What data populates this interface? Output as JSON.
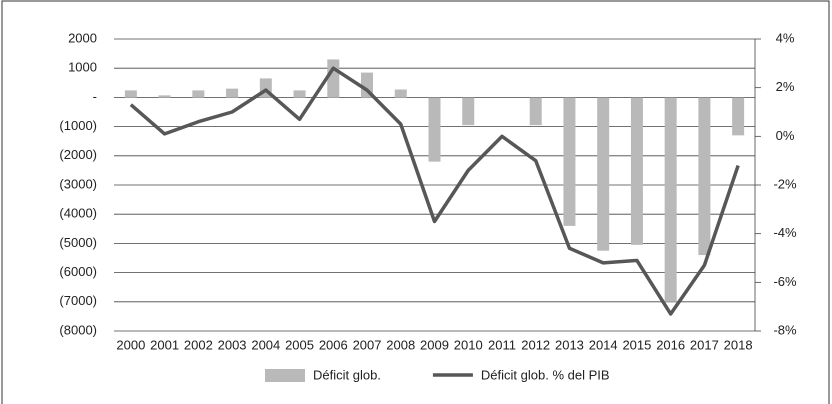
{
  "chart_data": {
    "type": "bar-line",
    "categories": [
      "2000",
      "2001",
      "2002",
      "2003",
      "2004",
      "2005",
      "2006",
      "2007",
      "2008",
      "2009",
      "2010",
      "2011",
      "2012",
      "2013",
      "2014",
      "2015",
      "2016",
      "2017",
      "2018"
    ],
    "series": [
      {
        "name": "Déficit glob.",
        "type": "bar",
        "color": "#b9b9b9",
        "values": [
          240,
          70,
          240,
          300,
          650,
          240,
          1300,
          850,
          270,
          -2200,
          -950,
          0,
          -950,
          -4400,
          -5250,
          -5050,
          -7000,
          -5400,
          -1300
        ]
      },
      {
        "name": "Déficit glob. % del PIB",
        "type": "line",
        "axis": "y2",
        "color": "#575757",
        "values": [
          1.3,
          0.1,
          0.6,
          1.0,
          1.9,
          0.7,
          2.8,
          1.9,
          0.5,
          -3.5,
          -1.4,
          0,
          -1.0,
          -4.6,
          -5.2,
          -5.1,
          -7.3,
          -5.3,
          -1.2
        ]
      }
    ],
    "ylim": [
      -8000,
      2000
    ],
    "yticks": [
      2000,
      1000,
      {
        "value": 0,
        "label": "-"
      },
      {
        "value": -1000,
        "label": "(1000)"
      },
      {
        "value": -2000,
        "label": "(2000)"
      },
      {
        "value": -3000,
        "label": "(3000)"
      },
      {
        "value": -4000,
        "label": "(4000)"
      },
      {
        "value": -5000,
        "label": "(5000)"
      },
      {
        "value": -6000,
        "label": "(6000)"
      },
      {
        "value": -7000,
        "label": "(7000)"
      },
      {
        "value": -8000,
        "label": "(8000)"
      }
    ],
    "y2lim": [
      -8,
      4
    ],
    "y2ticks": [
      {
        "value": 4,
        "label": "4%"
      },
      {
        "value": 2,
        "label": "2%"
      },
      {
        "value": 0,
        "label": "0%"
      },
      {
        "value": -2,
        "label": "-2%"
      },
      {
        "value": -4,
        "label": "-4%"
      },
      {
        "value": -6,
        "label": "-6%"
      },
      {
        "value": -8,
        "label": "-8%"
      }
    ],
    "grid": true,
    "legend": "bottom"
  }
}
